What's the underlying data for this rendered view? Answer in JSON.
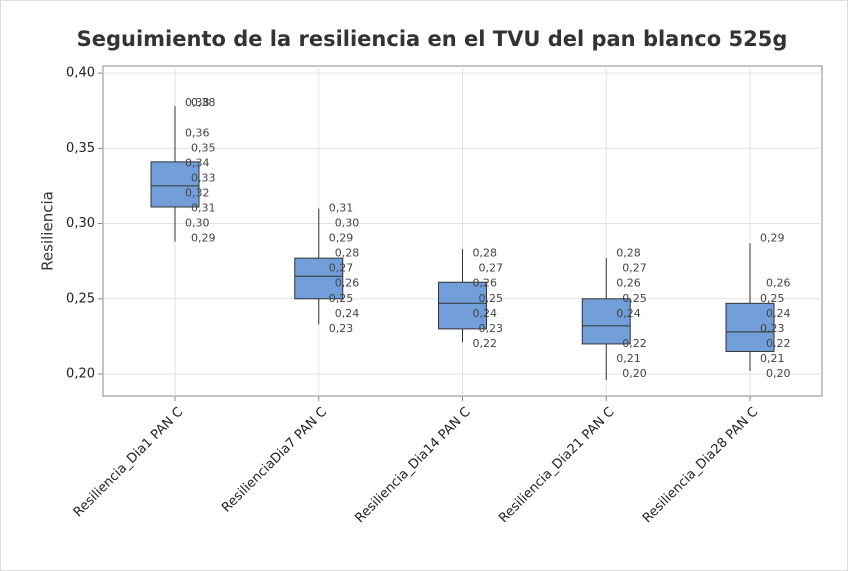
{
  "chart_data": {
    "type": "box",
    "title": "Seguimiento de la resiliencia en el TVU del pan blanco 525g",
    "y_label": "Resiliencia",
    "color": "#729fd9",
    "grid": true,
    "ylim": [
      0.1854,
      0.4047
    ],
    "yticks": [
      {
        "value": 0.2,
        "label": "0,20"
      },
      {
        "value": 0.25,
        "label": "0,25"
      },
      {
        "value": 0.3,
        "label": "0,30"
      },
      {
        "value": 0.35,
        "label": "0,35"
      },
      {
        "value": 0.4,
        "label": "0,40"
      }
    ],
    "categories": [
      "Resiliencia_Dia1 PAN C",
      "ResilienciaDia7 PAN C",
      "Resiliencia_Dia14 PAN C",
      "Resiliencia_Dia21 PAN C",
      "Resiliencia_Dia28 PAN C"
    ],
    "boxes": [
      {
        "min": 0.288,
        "q1": 0.311,
        "median": 0.325,
        "q3": 0.341,
        "max": 0.378,
        "points": [
          0.38,
          0.38,
          0.36,
          0.35,
          0.34,
          0.33,
          0.32,
          0.31,
          0.3,
          0.29
        ],
        "value_labels": [
          "0,38",
          "0,38",
          "0,36",
          "0,35",
          "0,34",
          "0,33",
          "0,32",
          "0,31",
          "0,30",
          "0,29"
        ]
      },
      {
        "min": 0.233,
        "q1": 0.25,
        "median": 0.265,
        "q3": 0.277,
        "max": 0.31,
        "points": [
          0.31,
          0.3,
          0.29,
          0.28,
          0.27,
          0.26,
          0.25,
          0.24,
          0.23
        ],
        "value_labels": [
          "0,31",
          "0,30",
          "0,29",
          "0,28",
          "0,27",
          "0,26",
          "0,25",
          "0,24",
          "0,23"
        ]
      },
      {
        "min": 0.221,
        "q1": 0.23,
        "median": 0.247,
        "q3": 0.261,
        "max": 0.283,
        "points": [
          0.28,
          0.27,
          0.26,
          0.25,
          0.24,
          0.23,
          0.22
        ],
        "value_labels": [
          "0,28",
          "0,27",
          "0,26",
          "0,25",
          "0,24",
          "0,23",
          "0,22"
        ]
      },
      {
        "min": 0.196,
        "q1": 0.22,
        "median": 0.232,
        "q3": 0.25,
        "max": 0.277,
        "points": [
          0.28,
          0.27,
          0.26,
          0.25,
          0.24,
          0.22,
          0.21,
          0.2
        ],
        "value_labels": [
          "0,28",
          "0,27",
          "0,26",
          "0,25",
          "0,24",
          "0,22",
          "0,21",
          "0,20"
        ]
      },
      {
        "min": 0.202,
        "q1": 0.215,
        "median": 0.228,
        "q3": 0.247,
        "max": 0.287,
        "points": [
          0.29,
          0.26,
          0.25,
          0.24,
          0.23,
          0.22,
          0.21,
          0.2
        ],
        "value_labels": [
          "0,29",
          "0,26",
          "0,25",
          "0,24",
          "0,23",
          "0,22",
          "0,21",
          "0,20"
        ]
      }
    ]
  }
}
